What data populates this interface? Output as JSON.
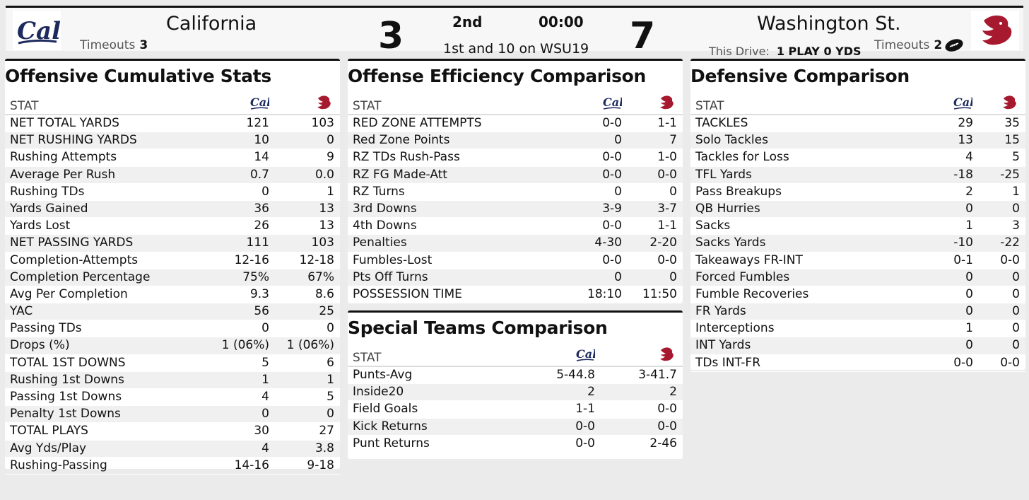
{
  "scoreboard": {
    "home": {
      "name": "California",
      "score": "3",
      "timeouts_label": "Timeouts",
      "timeouts": "3"
    },
    "away": {
      "name": "Washington St.",
      "score": "7",
      "timeouts_label": "Timeouts",
      "timeouts": "2"
    },
    "quarter": "2nd",
    "clock": "00:00",
    "down_distance": "1st and 10 on WSU19",
    "drive_label": "This Drive:",
    "drive_value": "1 PLAY 0 YDS"
  },
  "colors": {
    "cal_navy": "#1c2a5e",
    "wsu_crimson": "#a6192e"
  },
  "panels": {
    "offense": {
      "title": "Offensive Cumulative Stats",
      "stat_header": "STAT",
      "rows": [
        {
          "name": "NET TOTAL YARDS",
          "cal": "121",
          "wsu": "103"
        },
        {
          "name": "NET RUSHING YARDS",
          "cal": "10",
          "wsu": "0"
        },
        {
          "name": "Rushing Attempts",
          "cal": "14",
          "wsu": "9"
        },
        {
          "name": "Average Per Rush",
          "cal": "0.7",
          "wsu": "0.0"
        },
        {
          "name": "Rushing TDs",
          "cal": "0",
          "wsu": "1"
        },
        {
          "name": "Yards Gained",
          "cal": "36",
          "wsu": "13"
        },
        {
          "name": "Yards Lost",
          "cal": "26",
          "wsu": "13"
        },
        {
          "name": "NET PASSING YARDS",
          "cal": "111",
          "wsu": "103"
        },
        {
          "name": "Completion-Attempts",
          "cal": "12-16",
          "wsu": "12-18"
        },
        {
          "name": "Completion Percentage",
          "cal": "75%",
          "wsu": "67%"
        },
        {
          "name": "Avg Per Completion",
          "cal": "9.3",
          "wsu": "8.6"
        },
        {
          "name": "YAC",
          "cal": "56",
          "wsu": "25"
        },
        {
          "name": "Passing TDs",
          "cal": "0",
          "wsu": "0"
        },
        {
          "name": "Drops (%)",
          "cal": "1 (06%)",
          "wsu": "1 (06%)"
        },
        {
          "name": "TOTAL 1ST DOWNS",
          "cal": "5",
          "wsu": "6"
        },
        {
          "name": "Rushing 1st Downs",
          "cal": "1",
          "wsu": "1"
        },
        {
          "name": "Passing 1st Downs",
          "cal": "4",
          "wsu": "5"
        },
        {
          "name": "Penalty 1st Downs",
          "cal": "0",
          "wsu": "0"
        },
        {
          "name": "TOTAL PLAYS",
          "cal": "30",
          "wsu": "27"
        },
        {
          "name": "Avg Yds/Play",
          "cal": "4",
          "wsu": "3.8"
        },
        {
          "name": "Rushing-Passing",
          "cal": "14-16",
          "wsu": "9-18"
        }
      ]
    },
    "efficiency": {
      "title": "Offense Efficiency Comparison",
      "stat_header": "STAT",
      "rows": [
        {
          "name": "RED ZONE ATTEMPTS",
          "cal": "0-0",
          "wsu": "1-1"
        },
        {
          "name": "Red Zone Points",
          "cal": "0",
          "wsu": "7"
        },
        {
          "name": "RZ TDs Rush-Pass",
          "cal": "0-0",
          "wsu": "1-0"
        },
        {
          "name": "RZ FG Made-Att",
          "cal": "0-0",
          "wsu": "0-0"
        },
        {
          "name": "RZ Turns",
          "cal": "0",
          "wsu": "0"
        },
        {
          "name": "3rd Downs",
          "cal": "3-9",
          "wsu": "3-7"
        },
        {
          "name": "4th Downs",
          "cal": "0-0",
          "wsu": "1-1"
        },
        {
          "name": "Penalties",
          "cal": "4-30",
          "wsu": "2-20"
        },
        {
          "name": "Fumbles-Lost",
          "cal": "0-0",
          "wsu": "0-0"
        },
        {
          "name": "Pts Off Turns",
          "cal": "0",
          "wsu": "0"
        },
        {
          "name": "POSSESSION TIME",
          "cal": "18:10",
          "wsu": "11:50"
        }
      ]
    },
    "special": {
      "title": "Special Teams Comparison",
      "stat_header": "STAT",
      "rows": [
        {
          "name": "Punts-Avg",
          "cal": "5-44.8",
          "wsu": "3-41.7"
        },
        {
          "name": "Inside20",
          "cal": "2",
          "wsu": "2"
        },
        {
          "name": "Field Goals",
          "cal": "1-1",
          "wsu": "0-0"
        },
        {
          "name": "Kick Returns",
          "cal": "0-0",
          "wsu": "0-0"
        },
        {
          "name": "Punt Returns",
          "cal": "0-0",
          "wsu": "2-46"
        }
      ]
    },
    "defense": {
      "title": "Defensive Comparison",
      "stat_header": "STAT",
      "rows": [
        {
          "name": "TACKLES",
          "cal": "29",
          "wsu": "35"
        },
        {
          "name": "Solo Tackles",
          "cal": "13",
          "wsu": "15"
        },
        {
          "name": "Tackles for Loss",
          "cal": "4",
          "wsu": "5"
        },
        {
          "name": "TFL Yards",
          "cal": "-18",
          "wsu": "-25"
        },
        {
          "name": "Pass Breakups",
          "cal": "2",
          "wsu": "1"
        },
        {
          "name": "QB Hurries",
          "cal": "0",
          "wsu": "0"
        },
        {
          "name": "Sacks",
          "cal": "1",
          "wsu": "3"
        },
        {
          "name": "Sacks Yards",
          "cal": "-10",
          "wsu": "-22"
        },
        {
          "name": "Takeaways FR-INT",
          "cal": "0-1",
          "wsu": "0-0"
        },
        {
          "name": "Forced Fumbles",
          "cal": "0",
          "wsu": "0"
        },
        {
          "name": "Fumble Recoveries",
          "cal": "0",
          "wsu": "0"
        },
        {
          "name": "FR Yards",
          "cal": "0",
          "wsu": "0"
        },
        {
          "name": "Interceptions",
          "cal": "1",
          "wsu": "0"
        },
        {
          "name": "INT Yards",
          "cal": "0",
          "wsu": "0"
        },
        {
          "name": "TDs INT-FR",
          "cal": "0-0",
          "wsu": "0-0"
        }
      ]
    }
  }
}
